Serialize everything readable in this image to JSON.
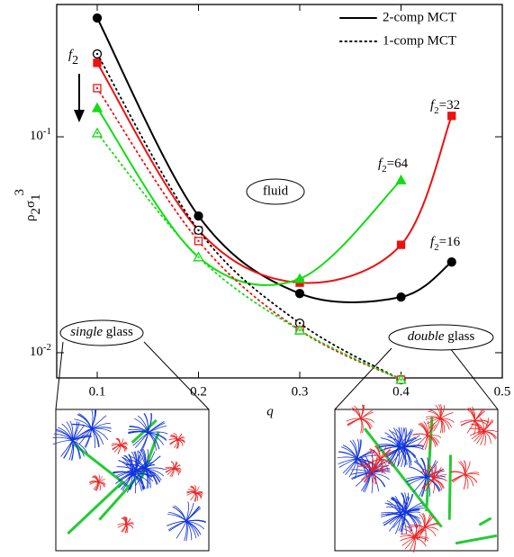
{
  "chart_data": {
    "type": "line",
    "x_label": "q",
    "y_label": {
      "base": "ρ",
      "sub1": "2",
      "mid": "σ",
      "sub2": "1",
      "sup": "3"
    },
    "xlim": [
      0.06,
      0.5
    ],
    "xticks": [
      0.1,
      0.2,
      0.3,
      0.4,
      0.5
    ],
    "ylim": [
      0.00764,
      0.41
    ],
    "log_y": true,
    "yticks": [
      {
        "value": 0.1,
        "label": "10",
        "exponent": "-1"
      },
      {
        "value": 0.01,
        "label": "10",
        "exponent": "-2"
      }
    ],
    "legend": [
      {
        "name": "2-comp MCT",
        "style": "solid"
      },
      {
        "name": "1-comp MCT",
        "style": "dotted"
      }
    ],
    "series": [
      {
        "style": "solid",
        "marker": "circle",
        "color": "#000000",
        "x": [
          0.1,
          0.2,
          0.3,
          0.4,
          0.45
        ],
        "values": [
          0.355,
          0.043,
          0.0188,
          0.0181,
          0.0263
        ]
      },
      {
        "style": "solid",
        "marker": "square",
        "color": "#ee1111",
        "x": [
          0.1,
          0.2,
          0.3,
          0.4,
          0.45
        ],
        "values": [
          0.22,
          0.0369,
          0.0211,
          0.0316,
          0.125
        ]
      },
      {
        "style": "solid",
        "marker": "triangle",
        "color": "#11dd11",
        "x": [
          0.1,
          0.2,
          0.3,
          0.4
        ],
        "values": [
          0.136,
          0.0277,
          0.022,
          0.063
        ]
      },
      {
        "style": "dotted",
        "marker": "circle",
        "color": "#000000",
        "x": [
          0.1,
          0.2,
          0.3,
          0.4
        ],
        "values": [
          0.242,
          0.0369,
          0.0137,
          0.0075
        ]
      },
      {
        "style": "dotted",
        "marker": "square",
        "color": "#ee1111",
        "x": [
          0.1,
          0.2,
          0.3,
          0.4
        ],
        "values": [
          0.168,
          0.0329,
          0.0127,
          0.0075
        ]
      },
      {
        "style": "dotted",
        "marker": "triangle",
        "color": "#11dd11",
        "x": [
          0.1,
          0.2,
          0.3,
          0.4
        ],
        "values": [
          0.104,
          0.0277,
          0.0127,
          0.0075
        ]
      }
    ],
    "arrow_label": {
      "base": "f",
      "sub": "2"
    },
    "annotations": [
      {
        "base": "f",
        "sub": "2",
        "rest": "=64"
      },
      {
        "base": "f",
        "sub": "2",
        "rest": "=32"
      },
      {
        "base": "f",
        "sub": "2",
        "rest": "=16"
      }
    ],
    "regions": {
      "fluid": "fluid",
      "single": {
        "italic": "single",
        "rest": " glass"
      },
      "double": {
        "italic": "double",
        "rest": " glass"
      }
    }
  }
}
